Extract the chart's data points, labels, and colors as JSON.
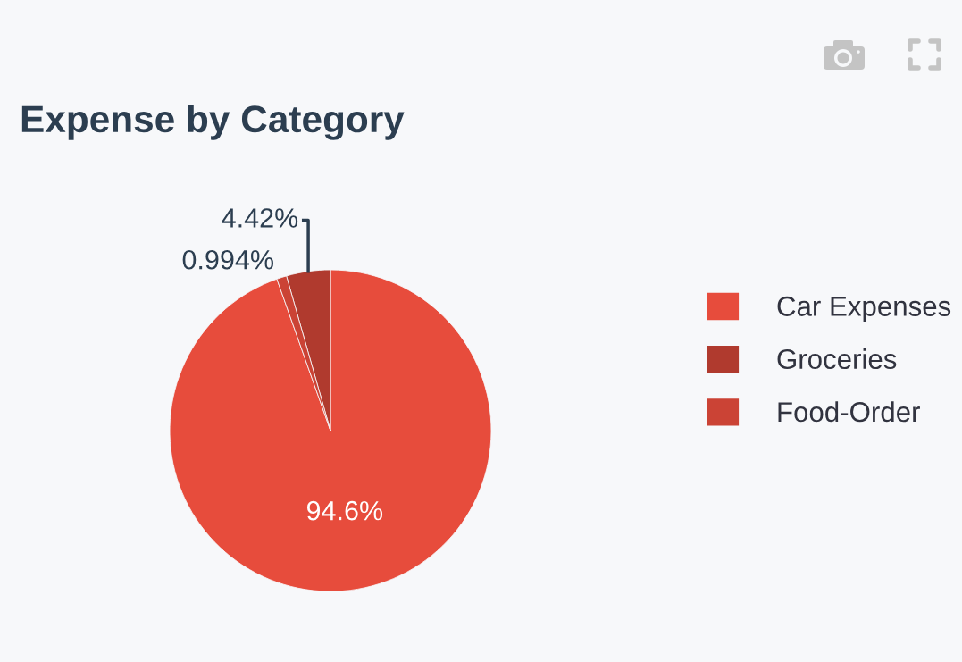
{
  "chart_data": {
    "type": "pie",
    "title": "Expense by Category",
    "categories": [
      "Car Expenses",
      "Groceries",
      "Food-Order"
    ],
    "values": [
      94.6,
      4.42,
      0.994
    ],
    "colors": [
      "#e74c3c",
      "#b03a2e",
      "#cb4335"
    ],
    "value_labels": [
      "94.6%",
      "4.42%",
      "0.994%"
    ],
    "legend": "right"
  }
}
